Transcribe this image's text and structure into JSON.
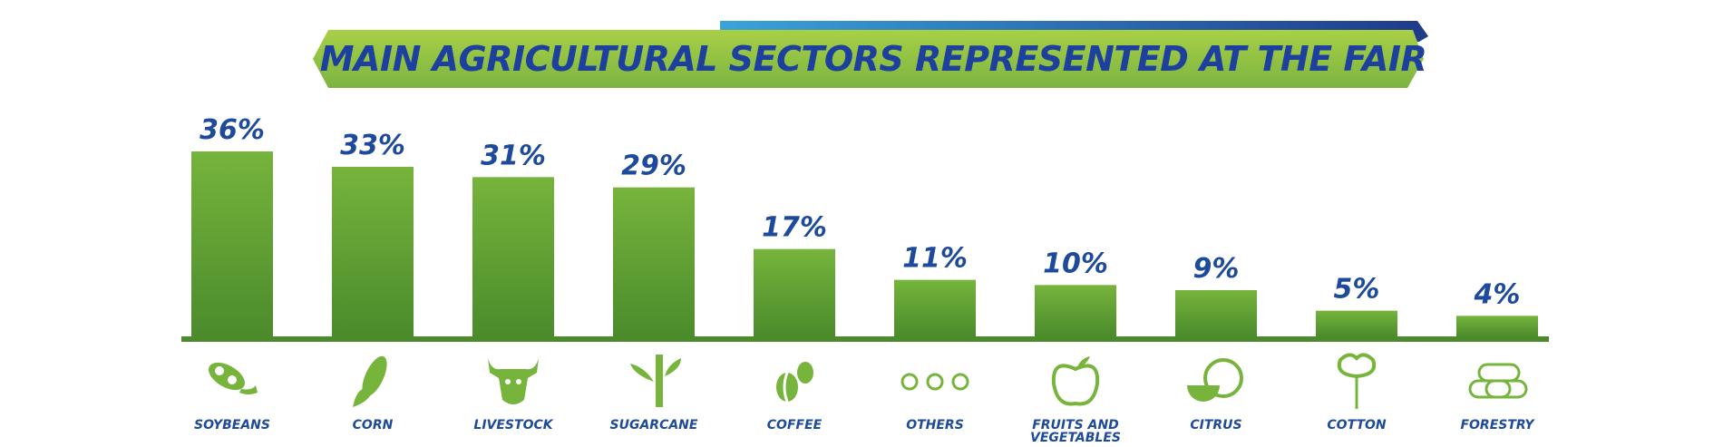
{
  "chart_data": {
    "type": "bar",
    "title": "MAIN AGRICULTURAL SECTORS REPRESENTED AT THE FAIR",
    "categories": [
      "SOYBEANS",
      "CORN",
      "LIVESTOCK",
      "SUGARCANE",
      "COFFEE",
      "OTHERS",
      "FRUITS AND VEGETABLES",
      "CITRUS",
      "COTTON",
      "FORESTRY"
    ],
    "values": [
      36,
      33,
      31,
      29,
      17,
      11,
      10,
      9,
      5,
      4
    ],
    "value_labels": [
      "36%",
      "33%",
      "31%",
      "29%",
      "17%",
      "11%",
      "10%",
      "9%",
      "5%",
      "4%"
    ],
    "color": "#76b43c"
  }
}
